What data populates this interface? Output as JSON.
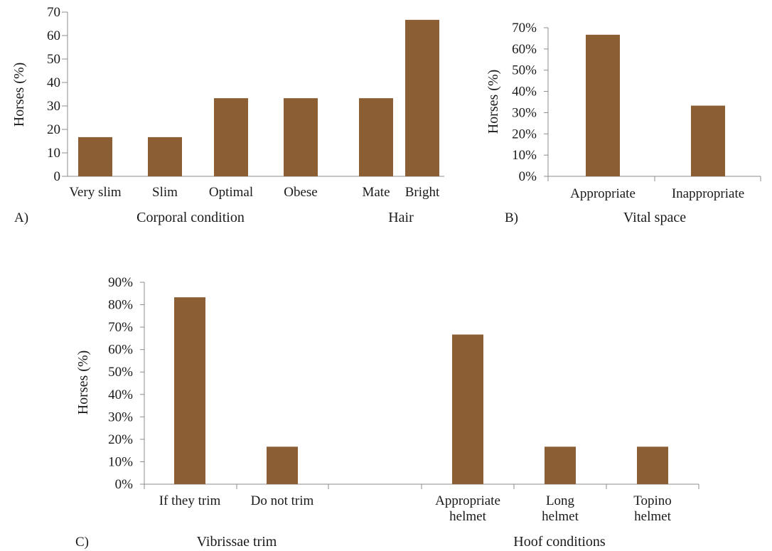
{
  "chart_data": [
    {
      "panel": "A)",
      "type": "bar",
      "categories": [
        "Very slim",
        "Slim",
        "Optimal",
        "Obese",
        "Mate",
        "Bright"
      ],
      "values": [
        16.7,
        16.7,
        33.3,
        33.3,
        33.3,
        66.7
      ],
      "groups": [
        {
          "label": "Corporal condition",
          "members": [
            "Very slim",
            "Slim",
            "Optimal",
            "Obese"
          ]
        },
        {
          "label": "Hair",
          "members": [
            "Mate",
            "Bright"
          ]
        }
      ],
      "ylabel": "Horses (%)",
      "ylim": [
        0,
        70
      ],
      "yticks": [
        "0",
        "10",
        "20",
        "30",
        "40",
        "50",
        "60",
        "70"
      ],
      "color": "#8b5e34",
      "grid": false
    },
    {
      "panel": "B)",
      "type": "bar",
      "categories": [
        "Appropriate",
        "Inappropriate"
      ],
      "values": [
        0.667,
        0.333
      ],
      "groups": [
        {
          "label": "Vital space"
        }
      ],
      "ylabel": "Horses (%)",
      "ylim": [
        0,
        0.7
      ],
      "yticks": [
        "0%",
        "10%",
        "20%",
        "30%",
        "40%",
        "50%",
        "60%",
        "70%"
      ],
      "color": "#8b5e34",
      "grid": false
    },
    {
      "panel": "C)",
      "type": "bar",
      "categories": [
        [
          "If they trim"
        ],
        [
          "Do not trim"
        ],
        [
          ""
        ],
        [
          "Appropriate",
          "helmet"
        ],
        [
          "Long",
          "helmet"
        ],
        [
          "Topino",
          "helmet"
        ]
      ],
      "values": [
        0.833,
        0.167,
        null,
        0.667,
        0.167,
        0.167
      ],
      "groups": [
        {
          "label": "Vibrissae trim"
        },
        {
          "label": "Hoof conditions"
        }
      ],
      "ylabel": "Horses (%)",
      "ylim": [
        0,
        0.9
      ],
      "yticks": [
        "0%",
        "10%",
        "20%",
        "30%",
        "40%",
        "50%",
        "60%",
        "70%",
        "80%",
        "90%"
      ],
      "color": "#8b5e34",
      "grid": false
    }
  ]
}
